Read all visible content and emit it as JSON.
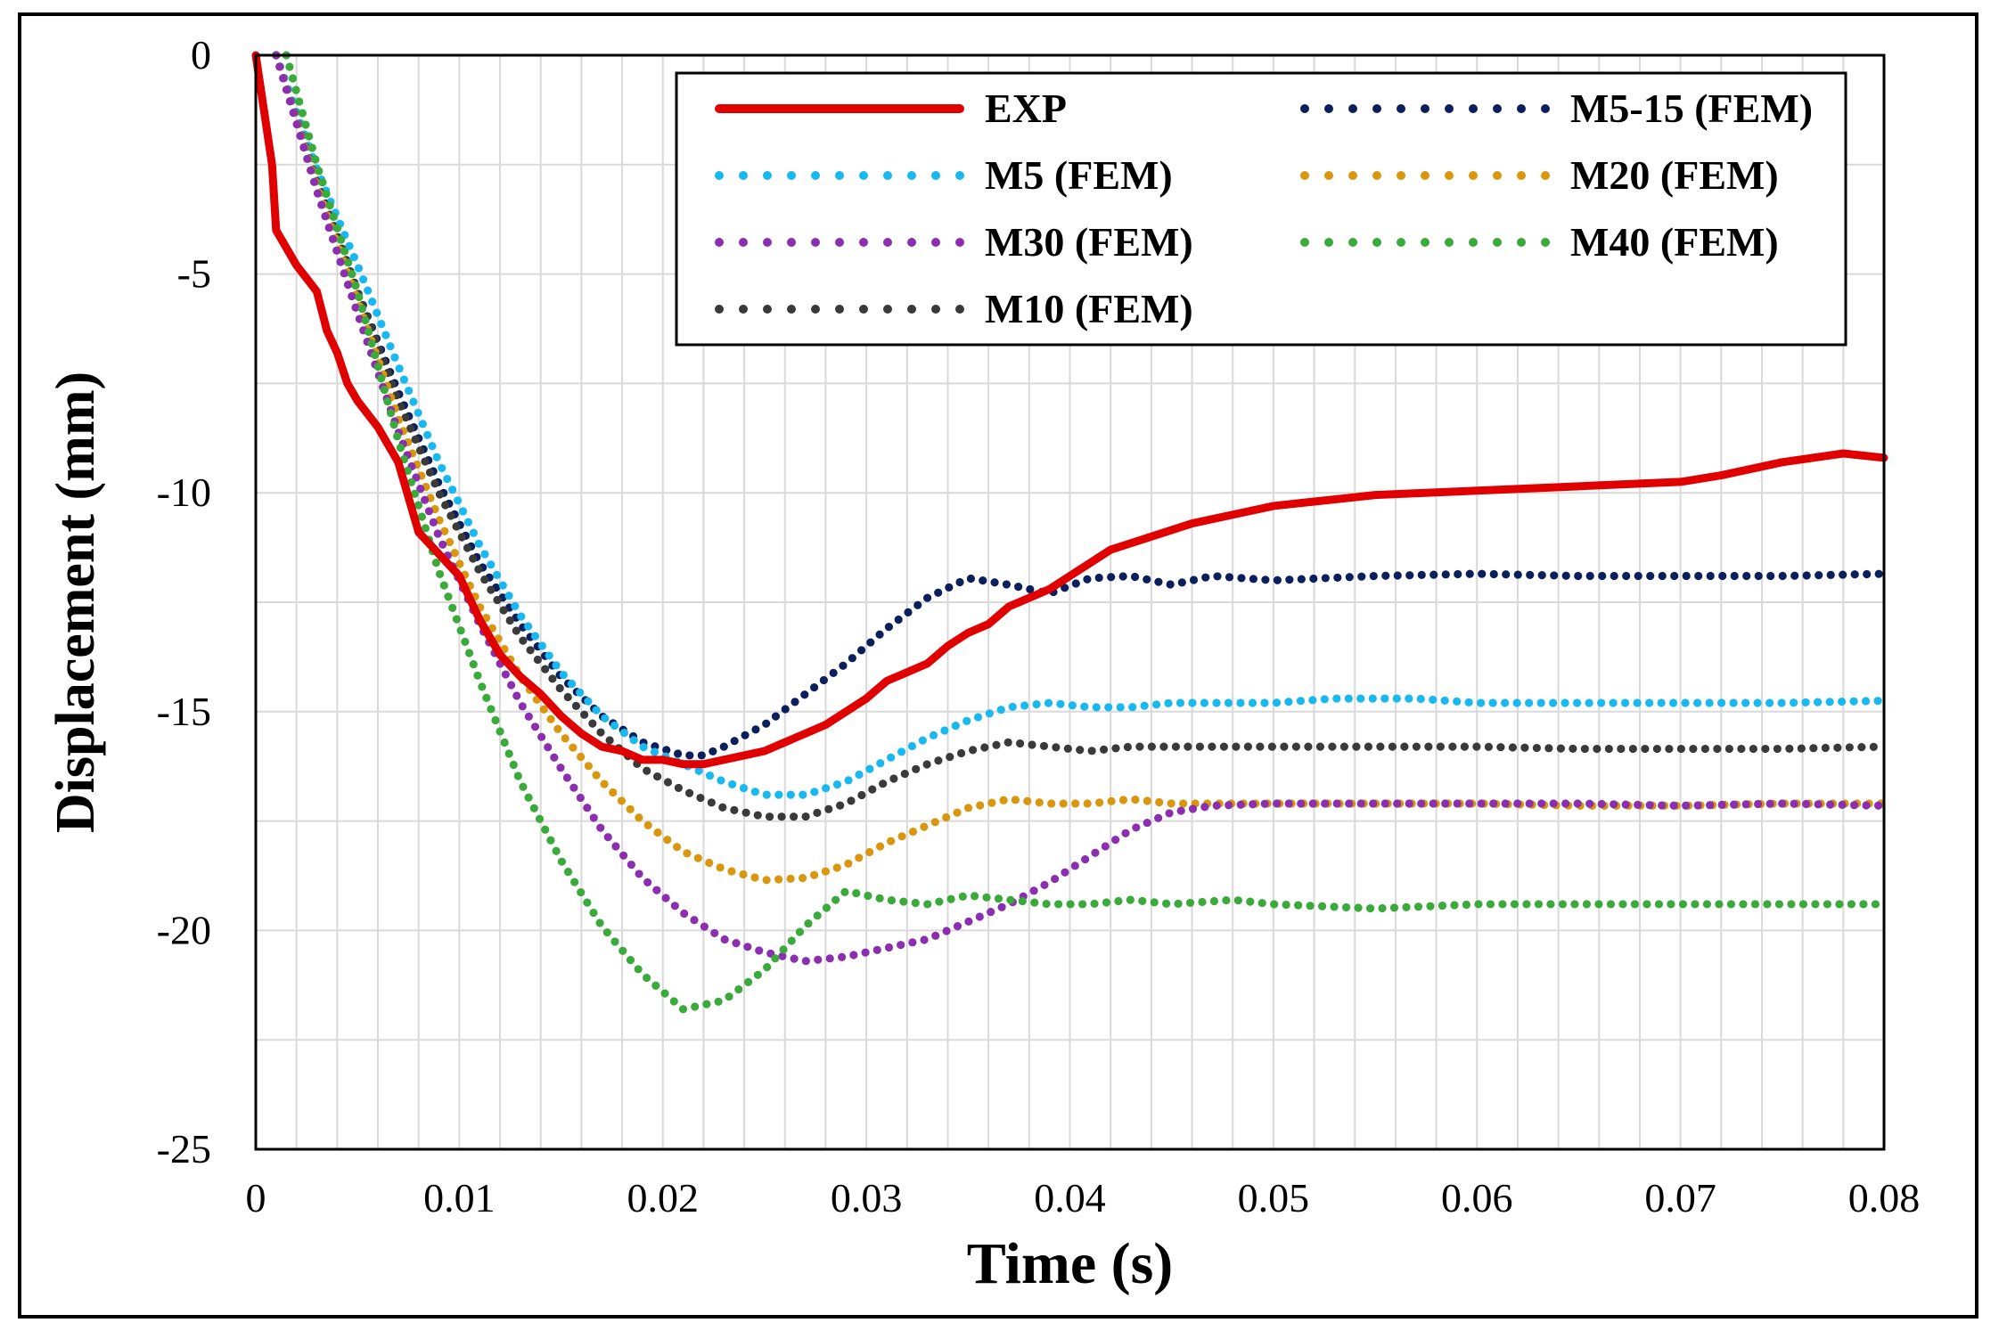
{
  "chart_data": {
    "type": "line",
    "title": "",
    "xlabel": "Time (s)",
    "ylabel": "Displacement (mm)",
    "xlim": [
      0,
      0.08
    ],
    "ylim": [
      -25,
      0
    ],
    "x_ticks": [
      0,
      0.01,
      0.02,
      0.03,
      0.04,
      0.05,
      0.06,
      0.07,
      0.08
    ],
    "x_tick_labels": [
      "0",
      "0.01",
      "0.02",
      "0.03",
      "0.04",
      "0.05",
      "0.06",
      "0.07",
      "0.08"
    ],
    "y_ticks": [
      0,
      -5,
      -10,
      -15,
      -20,
      -25
    ],
    "y_tick_labels": [
      "0",
      "-5",
      "-10",
      "-15",
      "-20",
      "-25"
    ],
    "grid": true,
    "legend_position": "top-right",
    "series": [
      {
        "name": "EXP",
        "style": "solid",
        "color": "#e00000",
        "points": [
          [
            0,
            0
          ],
          [
            0.0008,
            -2.5
          ],
          [
            0.001,
            -4
          ],
          [
            0.0015,
            -4.4
          ],
          [
            0.002,
            -4.8
          ],
          [
            0.003,
            -5.4
          ],
          [
            0.0035,
            -6.3
          ],
          [
            0.004,
            -6.8
          ],
          [
            0.0045,
            -7.5
          ],
          [
            0.005,
            -7.9
          ],
          [
            0.006,
            -8.5
          ],
          [
            0.007,
            -9.3
          ],
          [
            0.008,
            -10.9
          ],
          [
            0.009,
            -11.4
          ],
          [
            0.01,
            -11.9
          ],
          [
            0.011,
            -12.9
          ],
          [
            0.012,
            -13.7
          ],
          [
            0.013,
            -14.2
          ],
          [
            0.014,
            -14.6
          ],
          [
            0.015,
            -15.1
          ],
          [
            0.016,
            -15.5
          ],
          [
            0.017,
            -15.8
          ],
          [
            0.018,
            -15.9
          ],
          [
            0.019,
            -16.1
          ],
          [
            0.02,
            -16.1
          ],
          [
            0.021,
            -16.2
          ],
          [
            0.022,
            -16.2
          ],
          [
            0.023,
            -16.1
          ],
          [
            0.024,
            -16.0
          ],
          [
            0.025,
            -15.9
          ],
          [
            0.026,
            -15.7
          ],
          [
            0.027,
            -15.5
          ],
          [
            0.028,
            -15.3
          ],
          [
            0.029,
            -15.0
          ],
          [
            0.03,
            -14.7
          ],
          [
            0.031,
            -14.3
          ],
          [
            0.032,
            -14.1
          ],
          [
            0.033,
            -13.9
          ],
          [
            0.034,
            -13.5
          ],
          [
            0.035,
            -13.2
          ],
          [
            0.036,
            -13.0
          ],
          [
            0.037,
            -12.6
          ],
          [
            0.038,
            -12.4
          ],
          [
            0.039,
            -12.2
          ],
          [
            0.04,
            -11.9
          ],
          [
            0.041,
            -11.6
          ],
          [
            0.042,
            -11.3
          ],
          [
            0.044,
            -11.0
          ],
          [
            0.046,
            -10.7
          ],
          [
            0.048,
            -10.5
          ],
          [
            0.05,
            -10.3
          ],
          [
            0.052,
            -10.2
          ],
          [
            0.055,
            -10.05
          ],
          [
            0.06,
            -9.95
          ],
          [
            0.065,
            -9.85
          ],
          [
            0.07,
            -9.75
          ],
          [
            0.072,
            -9.6
          ],
          [
            0.075,
            -9.3
          ],
          [
            0.078,
            -9.1
          ],
          [
            0.08,
            -9.2
          ]
        ]
      },
      {
        "name": "M5-15 (FEM)",
        "style": "dotted",
        "color": "#0b1f5c",
        "points": [
          [
            0.001,
            0
          ],
          [
            0.003,
            -2.8
          ],
          [
            0.005,
            -5.4
          ],
          [
            0.007,
            -7.7
          ],
          [
            0.009,
            -9.8
          ],
          [
            0.011,
            -11.6
          ],
          [
            0.013,
            -13.0
          ],
          [
            0.015,
            -14.2
          ],
          [
            0.017,
            -15.1
          ],
          [
            0.019,
            -15.7
          ],
          [
            0.021,
            -16.0
          ],
          [
            0.022,
            -16.0
          ],
          [
            0.023,
            -15.8
          ],
          [
            0.025,
            -15.3
          ],
          [
            0.027,
            -14.6
          ],
          [
            0.029,
            -13.9
          ],
          [
            0.031,
            -13.1
          ],
          [
            0.033,
            -12.4
          ],
          [
            0.035,
            -11.95
          ],
          [
            0.037,
            -12.1
          ],
          [
            0.039,
            -12.3
          ],
          [
            0.041,
            -11.95
          ],
          [
            0.043,
            -11.9
          ],
          [
            0.045,
            -12.1
          ],
          [
            0.047,
            -11.9
          ],
          [
            0.05,
            -12.0
          ],
          [
            0.055,
            -11.9
          ],
          [
            0.06,
            -11.85
          ],
          [
            0.065,
            -11.9
          ],
          [
            0.07,
            -11.9
          ],
          [
            0.075,
            -11.9
          ],
          [
            0.08,
            -11.85
          ]
        ]
      },
      {
        "name": "M5 (FEM)",
        "style": "dotted",
        "color": "#1ab8f0",
        "points": [
          [
            0.001,
            0
          ],
          [
            0.003,
            -2.6
          ],
          [
            0.005,
            -4.8
          ],
          [
            0.007,
            -7.1
          ],
          [
            0.009,
            -9.3
          ],
          [
            0.011,
            -11.2
          ],
          [
            0.013,
            -12.8
          ],
          [
            0.015,
            -14.1
          ],
          [
            0.017,
            -15.1
          ],
          [
            0.019,
            -15.8
          ],
          [
            0.021,
            -16.2
          ],
          [
            0.023,
            -16.6
          ],
          [
            0.025,
            -16.9
          ],
          [
            0.027,
            -16.9
          ],
          [
            0.029,
            -16.6
          ],
          [
            0.031,
            -16.1
          ],
          [
            0.033,
            -15.6
          ],
          [
            0.035,
            -15.2
          ],
          [
            0.037,
            -14.9
          ],
          [
            0.039,
            -14.8
          ],
          [
            0.041,
            -14.9
          ],
          [
            0.043,
            -14.9
          ],
          [
            0.045,
            -14.8
          ],
          [
            0.048,
            -14.8
          ],
          [
            0.05,
            -14.8
          ],
          [
            0.053,
            -14.7
          ],
          [
            0.057,
            -14.7
          ],
          [
            0.06,
            -14.8
          ],
          [
            0.065,
            -14.8
          ],
          [
            0.07,
            -14.8
          ],
          [
            0.075,
            -14.8
          ],
          [
            0.08,
            -14.75
          ]
        ]
      },
      {
        "name": "M10 (FEM)",
        "style": "dotted",
        "color": "#3a3a3a",
        "points": [
          [
            0.001,
            0
          ],
          [
            0.003,
            -2.9
          ],
          [
            0.005,
            -5.4
          ],
          [
            0.007,
            -7.9
          ],
          [
            0.009,
            -10.0
          ],
          [
            0.011,
            -11.8
          ],
          [
            0.013,
            -13.3
          ],
          [
            0.015,
            -14.5
          ],
          [
            0.017,
            -15.5
          ],
          [
            0.019,
            -16.3
          ],
          [
            0.021,
            -16.8
          ],
          [
            0.023,
            -17.2
          ],
          [
            0.025,
            -17.4
          ],
          [
            0.027,
            -17.4
          ],
          [
            0.029,
            -17.1
          ],
          [
            0.031,
            -16.6
          ],
          [
            0.033,
            -16.2
          ],
          [
            0.035,
            -15.9
          ],
          [
            0.037,
            -15.7
          ],
          [
            0.039,
            -15.8
          ],
          [
            0.041,
            -15.9
          ],
          [
            0.043,
            -15.8
          ],
          [
            0.045,
            -15.8
          ],
          [
            0.048,
            -15.8
          ],
          [
            0.05,
            -15.8
          ],
          [
            0.055,
            -15.8
          ],
          [
            0.06,
            -15.8
          ],
          [
            0.065,
            -15.85
          ],
          [
            0.07,
            -15.85
          ],
          [
            0.075,
            -15.85
          ],
          [
            0.08,
            -15.8
          ]
        ]
      },
      {
        "name": "M20 (FEM)",
        "style": "dotted",
        "color": "#d9960f",
        "points": [
          [
            0.001,
            0
          ],
          [
            0.003,
            -3.0
          ],
          [
            0.005,
            -5.6
          ],
          [
            0.007,
            -8.3
          ],
          [
            0.009,
            -10.6
          ],
          [
            0.011,
            -12.6
          ],
          [
            0.013,
            -14.2
          ],
          [
            0.015,
            -15.5
          ],
          [
            0.017,
            -16.6
          ],
          [
            0.019,
            -17.5
          ],
          [
            0.021,
            -18.2
          ],
          [
            0.023,
            -18.6
          ],
          [
            0.025,
            -18.85
          ],
          [
            0.027,
            -18.8
          ],
          [
            0.029,
            -18.5
          ],
          [
            0.031,
            -18.0
          ],
          [
            0.033,
            -17.6
          ],
          [
            0.035,
            -17.2
          ],
          [
            0.037,
            -17.0
          ],
          [
            0.039,
            -17.1
          ],
          [
            0.041,
            -17.1
          ],
          [
            0.043,
            -17.0
          ],
          [
            0.045,
            -17.1
          ],
          [
            0.048,
            -17.1
          ],
          [
            0.05,
            -17.1
          ],
          [
            0.055,
            -17.1
          ],
          [
            0.06,
            -17.1
          ],
          [
            0.065,
            -17.15
          ],
          [
            0.07,
            -17.15
          ],
          [
            0.075,
            -17.1
          ],
          [
            0.08,
            -17.1
          ]
        ]
      },
      {
        "name": "M30 (FEM)",
        "style": "dotted",
        "color": "#8b2fb0",
        "points": [
          [
            0.001,
            0
          ],
          [
            0.003,
            -3.1
          ],
          [
            0.005,
            -5.9
          ],
          [
            0.007,
            -8.6
          ],
          [
            0.009,
            -11.0
          ],
          [
            0.011,
            -13.0
          ],
          [
            0.013,
            -14.8
          ],
          [
            0.015,
            -16.3
          ],
          [
            0.017,
            -17.7
          ],
          [
            0.019,
            -18.8
          ],
          [
            0.021,
            -19.6
          ],
          [
            0.023,
            -20.2
          ],
          [
            0.025,
            -20.5
          ],
          [
            0.027,
            -20.7
          ],
          [
            0.029,
            -20.6
          ],
          [
            0.031,
            -20.4
          ],
          [
            0.033,
            -20.2
          ],
          [
            0.035,
            -19.8
          ],
          [
            0.037,
            -19.4
          ],
          [
            0.039,
            -18.9
          ],
          [
            0.041,
            -18.3
          ],
          [
            0.043,
            -17.7
          ],
          [
            0.045,
            -17.3
          ],
          [
            0.047,
            -17.15
          ],
          [
            0.05,
            -17.1
          ],
          [
            0.055,
            -17.1
          ],
          [
            0.06,
            -17.1
          ],
          [
            0.065,
            -17.1
          ],
          [
            0.07,
            -17.15
          ],
          [
            0.075,
            -17.1
          ],
          [
            0.08,
            -17.15
          ]
        ]
      },
      {
        "name": "M40 (FEM)",
        "style": "dotted",
        "color": "#3aaa3a",
        "points": [
          [
            0.0015,
            0
          ],
          [
            0.003,
            -2.5
          ],
          [
            0.005,
            -5.4
          ],
          [
            0.007,
            -8.8
          ],
          [
            0.009,
            -11.8
          ],
          [
            0.011,
            -14.3
          ],
          [
            0.013,
            -16.6
          ],
          [
            0.015,
            -18.4
          ],
          [
            0.017,
            -19.9
          ],
          [
            0.019,
            -21.0
          ],
          [
            0.021,
            -21.8
          ],
          [
            0.023,
            -21.6
          ],
          [
            0.025,
            -20.9
          ],
          [
            0.027,
            -19.9
          ],
          [
            0.029,
            -19.1
          ],
          [
            0.031,
            -19.3
          ],
          [
            0.033,
            -19.4
          ],
          [
            0.035,
            -19.2
          ],
          [
            0.037,
            -19.3
          ],
          [
            0.039,
            -19.4
          ],
          [
            0.041,
            -19.4
          ],
          [
            0.043,
            -19.3
          ],
          [
            0.045,
            -19.4
          ],
          [
            0.048,
            -19.3
          ],
          [
            0.05,
            -19.4
          ],
          [
            0.055,
            -19.5
          ],
          [
            0.06,
            -19.4
          ],
          [
            0.065,
            -19.4
          ],
          [
            0.07,
            -19.4
          ],
          [
            0.075,
            -19.4
          ],
          [
            0.08,
            -19.4
          ]
        ]
      }
    ],
    "legend_order": [
      "EXP",
      "M5-15 (FEM)",
      "M5 (FEM)",
      "M20 (FEM)",
      "M30 (FEM)",
      "M40 (FEM)",
      "M10 (FEM)"
    ]
  }
}
